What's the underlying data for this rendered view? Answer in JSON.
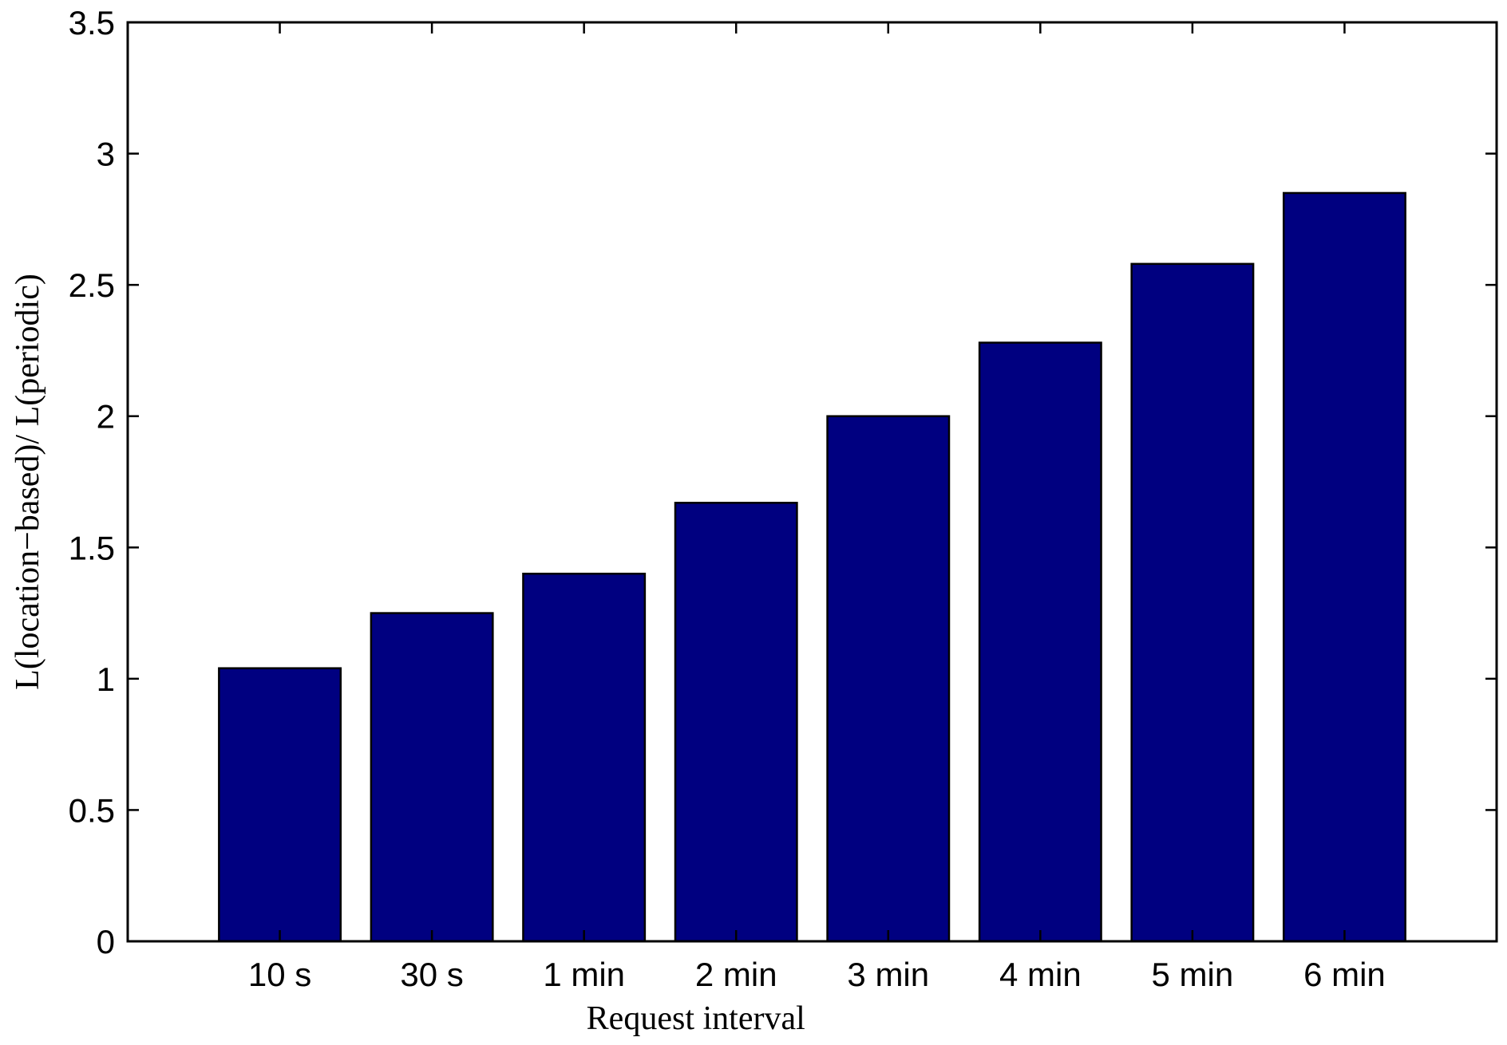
{
  "chart_data": {
    "type": "bar",
    "title": "",
    "xlabel": "Request interval",
    "ylabel": "L(location−based)/ L(periodic)",
    "categories": [
      "10 s",
      "30 s",
      "1 min",
      "2 min",
      "3 min",
      "4 min",
      "5 min",
      "6 min"
    ],
    "values": [
      1.04,
      1.25,
      1.4,
      1.67,
      2.0,
      2.28,
      2.58,
      2.85
    ],
    "ylim": [
      0,
      3.5
    ],
    "xlim": [
      0,
      9
    ],
    "yticks": [
      0,
      0.5,
      1,
      1.5,
      2,
      2.5,
      3,
      3.5
    ],
    "ytick_labels": [
      "0",
      "0.5",
      "1",
      "1.5",
      "2",
      "2.5",
      "3",
      "3.5"
    ],
    "bar_color": "#000080",
    "grid": false,
    "legend": "none"
  }
}
